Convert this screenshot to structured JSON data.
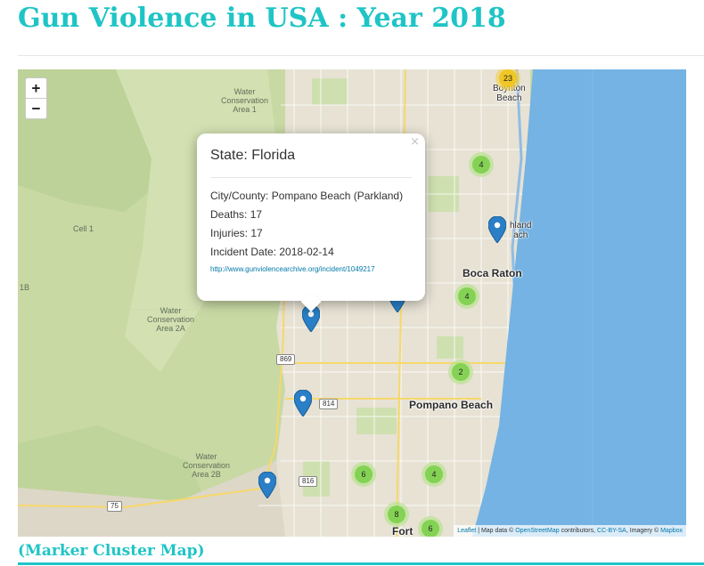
{
  "page": {
    "title": "Gun Violence in USA : Year 2018",
    "caption": "(Marker Cluster Map)"
  },
  "colors": {
    "accent": "#1fc4c6",
    "ocean": "#74b3e3",
    "wetland": "#c8d9a4",
    "urban": "#e7e2d4",
    "marker": "#2a7fc6",
    "cluster_small": "#6ecc39",
    "cluster_medium": "#f0c20c"
  },
  "map": {
    "zoom_in_label": "+",
    "zoom_out_label": "−",
    "labels": {
      "wca1": "Water\nConservation\nArea 1",
      "wca2a": "Water\nConservation\nArea 2A",
      "wca2b": "Water\nConservation\nArea 2B",
      "cell1": "Cell 1",
      "oneb": "1B",
      "boynton": "Boynton\nBeach",
      "highland": "hland\nach",
      "boca": "Boca Raton",
      "pompano": "Pompano Beach",
      "fort": "Fort"
    },
    "shields": {
      "r869": "869",
      "r814": "814",
      "r816": "816",
      "r75": "75"
    },
    "clusters": [
      {
        "count": "23",
        "tier": "medium"
      },
      {
        "count": "4",
        "tier": "small"
      },
      {
        "count": "4",
        "tier": "small"
      },
      {
        "count": "2",
        "tier": "small"
      },
      {
        "count": "6",
        "tier": "small"
      },
      {
        "count": "4",
        "tier": "small"
      },
      {
        "count": "8",
        "tier": "small"
      }
    ],
    "markers_icon": "map-marker-icon",
    "popup": {
      "close": "×",
      "state": "State: Florida",
      "city_county": "City/County: Pompano Beach (Parkland)",
      "deaths": "Deaths: 17",
      "injuries": "Injuries: 17",
      "incident_date": "Incident Date: 2018-02-14",
      "link": "http://www.gunviolencearchive.org/incident/1049217"
    },
    "attribution": {
      "leaflet": "Leaflet",
      "data_prefix": " | Map data © ",
      "osm": "OpenStreetMap",
      "contributors": " contributors, ",
      "license": "CC-BY-SA",
      "imagery": ", Imagery © ",
      "mapbox": "Mapbox"
    }
  }
}
